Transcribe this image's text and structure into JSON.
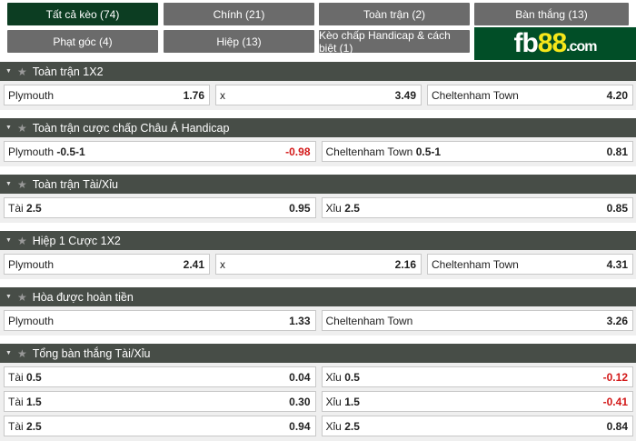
{
  "tabs": [
    {
      "label": "Tất cả kèo (74)",
      "active": true
    },
    {
      "label": "Chính (21)"
    },
    {
      "label": "Toàn trận (2)"
    },
    {
      "label": "Bàn thắng (13)"
    },
    {
      "label": "Phạt góc (4)"
    },
    {
      "label": "Hiệp (13)"
    },
    {
      "label": "Kèo chấp Handicap & cách biệt (1)"
    }
  ],
  "logo": {
    "text": "fb88.com",
    "brand_color": "#014e27",
    "accent": "#f6e71a"
  },
  "sections": [
    {
      "title": "Toàn trận 1X2",
      "rows": [
        [
          {
            "name": "Plymouth",
            "line": "",
            "odd": "1.76"
          },
          {
            "name": "x",
            "line": "",
            "odd": "3.49"
          },
          {
            "name": "Cheltenham Town",
            "line": "",
            "odd": "4.20"
          }
        ]
      ]
    },
    {
      "title": "Toàn trận cược chấp Châu Á Handicap",
      "rows": [
        [
          {
            "name": "Plymouth",
            "line": "-0.5-1",
            "odd": "-0.98"
          },
          {
            "name": "Cheltenham Town",
            "line": "0.5-1",
            "odd": "0.81"
          }
        ]
      ]
    },
    {
      "title": "Toàn trận Tài/Xỉu",
      "rows": [
        [
          {
            "name": "Tài",
            "line": "2.5",
            "odd": "0.95"
          },
          {
            "name": "Xỉu",
            "line": "2.5",
            "odd": "0.85"
          }
        ]
      ]
    },
    {
      "title": "Hiệp 1 Cược 1X2",
      "rows": [
        [
          {
            "name": "Plymouth",
            "line": "",
            "odd": "2.41"
          },
          {
            "name": "x",
            "line": "",
            "odd": "2.16"
          },
          {
            "name": "Cheltenham Town",
            "line": "",
            "odd": "4.31"
          }
        ]
      ]
    },
    {
      "title": "Hòa được hoàn tiền",
      "rows": [
        [
          {
            "name": "Plymouth",
            "line": "",
            "odd": "1.33"
          },
          {
            "name": "Cheltenham Town",
            "line": "",
            "odd": "3.26"
          }
        ]
      ]
    },
    {
      "title": "Tổng bàn thắng Tài/Xỉu",
      "rows": [
        [
          {
            "name": "Tài",
            "line": "0.5",
            "odd": "0.04"
          },
          {
            "name": "Xỉu",
            "line": "0.5",
            "odd": "-0.12"
          }
        ],
        [
          {
            "name": "Tài",
            "line": "1.5",
            "odd": "0.30"
          },
          {
            "name": "Xỉu",
            "line": "1.5",
            "odd": "-0.41"
          }
        ],
        [
          {
            "name": "Tài",
            "line": "2.5",
            "odd": "0.94"
          },
          {
            "name": "Xỉu",
            "line": "2.5",
            "odd": "0.84"
          }
        ]
      ]
    }
  ],
  "negative_color": "#d31818"
}
